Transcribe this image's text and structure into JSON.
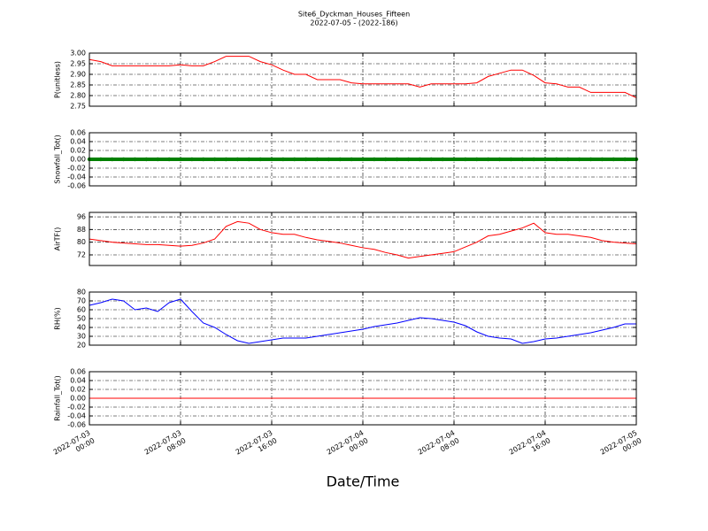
{
  "title": "Site6_Dyckman_Houses_Fifteen",
  "subtitle": "2022-07-05 - (2022-186)",
  "xlabel": "Date/Time",
  "chart_data": [
    {
      "type": "line",
      "ylabel": "P(unitless)",
      "color": "#ff0000",
      "grid": true,
      "x": [
        "2022-07-03 00:00",
        "2022-07-03 01:00",
        "2022-07-03 02:00",
        "2022-07-03 03:00",
        "2022-07-03 04:00",
        "2022-07-03 05:00",
        "2022-07-03 06:00",
        "2022-07-03 07:00",
        "2022-07-03 08:00",
        "2022-07-03 09:00",
        "2022-07-03 10:00",
        "2022-07-03 11:00",
        "2022-07-03 12:00",
        "2022-07-03 13:00",
        "2022-07-03 14:00",
        "2022-07-03 15:00",
        "2022-07-03 16:00",
        "2022-07-03 17:00",
        "2022-07-03 18:00",
        "2022-07-03 19:00",
        "2022-07-03 20:00",
        "2022-07-03 21:00",
        "2022-07-03 22:00",
        "2022-07-03 23:00",
        "2022-07-04 00:00",
        "2022-07-04 01:00",
        "2022-07-04 02:00",
        "2022-07-04 03:00",
        "2022-07-04 04:00",
        "2022-07-04 05:00",
        "2022-07-04 06:00",
        "2022-07-04 07:00",
        "2022-07-04 08:00",
        "2022-07-04 09:00",
        "2022-07-04 10:00",
        "2022-07-04 11:00",
        "2022-07-04 12:00",
        "2022-07-04 13:00",
        "2022-07-04 14:00",
        "2022-07-04 15:00",
        "2022-07-04 16:00",
        "2022-07-04 17:00",
        "2022-07-04 18:00",
        "2022-07-04 19:00",
        "2022-07-04 20:00",
        "2022-07-04 21:00",
        "2022-07-04 22:00",
        "2022-07-04 23:00",
        "2022-07-05 00:00"
      ],
      "values": [
        2.97,
        2.96,
        2.94,
        2.94,
        2.94,
        2.94,
        2.94,
        2.94,
        2.945,
        2.94,
        2.94,
        2.96,
        2.985,
        2.985,
        2.985,
        2.96,
        2.945,
        2.92,
        2.9,
        2.9,
        2.875,
        2.875,
        2.875,
        2.86,
        2.855,
        2.855,
        2.855,
        2.855,
        2.855,
        2.84,
        2.855,
        2.855,
        2.855,
        2.855,
        2.86,
        2.89,
        2.905,
        2.92,
        2.92,
        2.895,
        2.86,
        2.855,
        2.84,
        2.84,
        2.815,
        2.815,
        2.815,
        2.815,
        2.79
      ],
      "xlim": [
        "2022-07-03 00:00",
        "2022-07-05 00:00"
      ],
      "xticks": [
        "2022-07-03 00:00",
        "2022-07-03 08:00",
        "2022-07-03 16:00",
        "2022-07-04 00:00",
        "2022-07-04 08:00",
        "2022-07-04 16:00",
        "2022-07-05 00:00"
      ],
      "ylim": [
        2.75,
        3.0
      ],
      "yticks": [
        2.75,
        {
          "value": 2.8,
          "label": "2.80"
        },
        2.85,
        {
          "value": 2.9,
          "label": "2.90"
        },
        2.95,
        {
          "value": 3.0,
          "label": "3.00"
        }
      ]
    },
    {
      "type": "scatter",
      "ylabel": "Snowfall_Tot()",
      "color": "#008000",
      "grid": true,
      "x": [
        "2022-07-03 00:00",
        "2022-07-03 01:00",
        "2022-07-03 02:00",
        "2022-07-03 03:00",
        "2022-07-03 04:00",
        "2022-07-03 05:00",
        "2022-07-03 06:00",
        "2022-07-03 07:00",
        "2022-07-03 08:00",
        "2022-07-03 09:00",
        "2022-07-03 10:00",
        "2022-07-03 11:00",
        "2022-07-03 12:00",
        "2022-07-03 13:00",
        "2022-07-03 14:00",
        "2022-07-03 15:00",
        "2022-07-03 16:00",
        "2022-07-03 17:00",
        "2022-07-03 18:00",
        "2022-07-03 19:00",
        "2022-07-03 20:00",
        "2022-07-03 21:00",
        "2022-07-03 22:00",
        "2022-07-03 23:00",
        "2022-07-04 00:00",
        "2022-07-04 01:00",
        "2022-07-04 02:00",
        "2022-07-04 03:00",
        "2022-07-04 04:00",
        "2022-07-04 05:00",
        "2022-07-04 06:00",
        "2022-07-04 07:00",
        "2022-07-04 08:00",
        "2022-07-04 09:00",
        "2022-07-04 10:00",
        "2022-07-04 11:00",
        "2022-07-04 12:00",
        "2022-07-04 13:00",
        "2022-07-04 14:00",
        "2022-07-04 15:00",
        "2022-07-04 16:00",
        "2022-07-04 17:00",
        "2022-07-04 18:00",
        "2022-07-04 19:00",
        "2022-07-04 20:00",
        "2022-07-04 21:00",
        "2022-07-04 22:00",
        "2022-07-04 23:00",
        "2022-07-05 00:00"
      ],
      "values": [
        0,
        0,
        0,
        0,
        0,
        0,
        0,
        0,
        0,
        0,
        0,
        0,
        0,
        0,
        0,
        0,
        0,
        0,
        0,
        0,
        0,
        0,
        0,
        0,
        0,
        0,
        0,
        0,
        0,
        0,
        0,
        0,
        0,
        0,
        0,
        0,
        0,
        0,
        0,
        0,
        0,
        0,
        0,
        0,
        0,
        0,
        0,
        0,
        0
      ],
      "xlim": [
        "2022-07-03 00:00",
        "2022-07-05 00:00"
      ],
      "xticks": [
        "2022-07-03 00:00",
        "2022-07-03 08:00",
        "2022-07-03 16:00",
        "2022-07-04 00:00",
        "2022-07-04 08:00",
        "2022-07-04 16:00",
        "2022-07-05 00:00"
      ],
      "ylim": [
        -0.06,
        0.06
      ],
      "yticks": [
        -0.06,
        -0.04,
        -0.02,
        {
          "value": 0,
          "label": "0.00"
        },
        0.02,
        0.04,
        0.06
      ]
    },
    {
      "type": "line",
      "ylabel": "AirTF()",
      "color": "#ff0000",
      "grid": true,
      "x": [
        "2022-07-03 00:00",
        "2022-07-03 01:00",
        "2022-07-03 02:00",
        "2022-07-03 03:00",
        "2022-07-03 04:00",
        "2022-07-03 05:00",
        "2022-07-03 06:00",
        "2022-07-03 07:00",
        "2022-07-03 08:00",
        "2022-07-03 09:00",
        "2022-07-03 10:00",
        "2022-07-03 11:00",
        "2022-07-03 12:00",
        "2022-07-03 13:00",
        "2022-07-03 14:00",
        "2022-07-03 15:00",
        "2022-07-03 16:00",
        "2022-07-03 17:00",
        "2022-07-03 18:00",
        "2022-07-03 19:00",
        "2022-07-03 20:00",
        "2022-07-03 21:00",
        "2022-07-03 22:00",
        "2022-07-03 23:00",
        "2022-07-04 00:00",
        "2022-07-04 01:00",
        "2022-07-04 02:00",
        "2022-07-04 03:00",
        "2022-07-04 04:00",
        "2022-07-04 05:00",
        "2022-07-04 06:00",
        "2022-07-04 07:00",
        "2022-07-04 08:00",
        "2022-07-04 09:00",
        "2022-07-04 10:00",
        "2022-07-04 11:00",
        "2022-07-04 12:00",
        "2022-07-04 13:00",
        "2022-07-04 14:00",
        "2022-07-04 15:00",
        "2022-07-04 16:00",
        "2022-07-04 17:00",
        "2022-07-04 18:00",
        "2022-07-04 19:00",
        "2022-07-04 20:00",
        "2022-07-04 21:00",
        "2022-07-04 22:00",
        "2022-07-04 23:00",
        "2022-07-05 00:00"
      ],
      "values": [
        82,
        81,
        80,
        79.5,
        79,
        78.5,
        78.5,
        78,
        77.5,
        78,
        79.5,
        82,
        90,
        93,
        92,
        88,
        86,
        85,
        85,
        83,
        81.5,
        80.5,
        79.5,
        78,
        76.5,
        75.5,
        73.5,
        72,
        70,
        71,
        72,
        73,
        74,
        77,
        80,
        84,
        85,
        87,
        89,
        92,
        86,
        85,
        85,
        84,
        83,
        81,
        80,
        79.5,
        79
      ],
      "xlim": [
        "2022-07-03 00:00",
        "2022-07-05 00:00"
      ],
      "xticks": [
        "2022-07-03 00:00",
        "2022-07-03 08:00",
        "2022-07-03 16:00",
        "2022-07-04 00:00",
        "2022-07-04 08:00",
        "2022-07-04 16:00",
        "2022-07-05 00:00"
      ],
      "ylim": [
        65.3,
        98.8
      ],
      "yticks": [
        72,
        80,
        88,
        96
      ]
    },
    {
      "type": "line",
      "ylabel": "RH(%)",
      "color": "#0000ff",
      "grid": true,
      "x": [
        "2022-07-03 00:00",
        "2022-07-03 01:00",
        "2022-07-03 02:00",
        "2022-07-03 03:00",
        "2022-07-03 04:00",
        "2022-07-03 05:00",
        "2022-07-03 06:00",
        "2022-07-03 07:00",
        "2022-07-03 08:00",
        "2022-07-03 09:00",
        "2022-07-03 10:00",
        "2022-07-03 11:00",
        "2022-07-03 12:00",
        "2022-07-03 13:00",
        "2022-07-03 14:00",
        "2022-07-03 15:00",
        "2022-07-03 16:00",
        "2022-07-03 17:00",
        "2022-07-03 18:00",
        "2022-07-03 19:00",
        "2022-07-03 20:00",
        "2022-07-03 21:00",
        "2022-07-03 22:00",
        "2022-07-03 23:00",
        "2022-07-04 00:00",
        "2022-07-04 01:00",
        "2022-07-04 02:00",
        "2022-07-04 03:00",
        "2022-07-04 04:00",
        "2022-07-04 05:00",
        "2022-07-04 06:00",
        "2022-07-04 07:00",
        "2022-07-04 08:00",
        "2022-07-04 09:00",
        "2022-07-04 10:00",
        "2022-07-04 11:00",
        "2022-07-04 12:00",
        "2022-07-04 13:00",
        "2022-07-04 14:00",
        "2022-07-04 15:00",
        "2022-07-04 16:00",
        "2022-07-04 17:00",
        "2022-07-04 18:00",
        "2022-07-04 19:00",
        "2022-07-04 20:00",
        "2022-07-04 21:00",
        "2022-07-04 22:00",
        "2022-07-04 23:00",
        "2022-07-05 00:00"
      ],
      "values": [
        65,
        68,
        72,
        70,
        60,
        62,
        58,
        68,
        72,
        58,
        45,
        40,
        32,
        25,
        22,
        24,
        26,
        28,
        28,
        28,
        30,
        32,
        34,
        36,
        38,
        41,
        43,
        45,
        48,
        51,
        50,
        48,
        46,
        42,
        35,
        30,
        28,
        27,
        22,
        24,
        27,
        28,
        30,
        32,
        34,
        37,
        40,
        44,
        44
      ],
      "xlim": [
        "2022-07-03 00:00",
        "2022-07-05 00:00"
      ],
      "xticks": [
        "2022-07-03 00:00",
        "2022-07-03 08:00",
        "2022-07-03 16:00",
        "2022-07-04 00:00",
        "2022-07-04 08:00",
        "2022-07-04 16:00",
        "2022-07-05 00:00"
      ],
      "ylim": [
        20,
        80
      ],
      "yticks": [
        20,
        30,
        40,
        50,
        60,
        70,
        80
      ]
    },
    {
      "type": "line",
      "ylabel": "Rainfall_Tot()",
      "color": "#ff0000",
      "grid": true,
      "x": [
        "2022-07-03 00:00",
        "2022-07-03 01:00",
        "2022-07-03 02:00",
        "2022-07-03 03:00",
        "2022-07-03 04:00",
        "2022-07-03 05:00",
        "2022-07-03 06:00",
        "2022-07-03 07:00",
        "2022-07-03 08:00",
        "2022-07-03 09:00",
        "2022-07-03 10:00",
        "2022-07-03 11:00",
        "2022-07-03 12:00",
        "2022-07-03 13:00",
        "2022-07-03 14:00",
        "2022-07-03 15:00",
        "2022-07-03 16:00",
        "2022-07-03 17:00",
        "2022-07-03 18:00",
        "2022-07-03 19:00",
        "2022-07-03 20:00",
        "2022-07-03 21:00",
        "2022-07-03 22:00",
        "2022-07-03 23:00",
        "2022-07-04 00:00",
        "2022-07-04 01:00",
        "2022-07-04 02:00",
        "2022-07-04 03:00",
        "2022-07-04 04:00",
        "2022-07-04 05:00",
        "2022-07-04 06:00",
        "2022-07-04 07:00",
        "2022-07-04 08:00",
        "2022-07-04 09:00",
        "2022-07-04 10:00",
        "2022-07-04 11:00",
        "2022-07-04 12:00",
        "2022-07-04 13:00",
        "2022-07-04 14:00",
        "2022-07-04 15:00",
        "2022-07-04 16:00",
        "2022-07-04 17:00",
        "2022-07-04 18:00",
        "2022-07-04 19:00",
        "2022-07-04 20:00",
        "2022-07-04 21:00",
        "2022-07-04 22:00",
        "2022-07-04 23:00",
        "2022-07-05 00:00"
      ],
      "values": [
        0,
        0,
        0,
        0,
        0,
        0,
        0,
        0,
        0,
        0,
        0,
        0,
        0,
        0,
        0,
        0,
        0,
        0,
        0,
        0,
        0,
        0,
        0,
        0,
        0,
        0,
        0,
        0,
        0,
        0,
        0,
        0,
        0,
        0,
        0,
        0,
        0,
        0,
        0,
        0,
        0,
        0,
        0,
        0,
        0,
        0,
        0,
        0,
        0
      ],
      "xlim": [
        "2022-07-03 00:00",
        "2022-07-05 00:00"
      ],
      "xticks": [
        "2022-07-03 00:00",
        "2022-07-03 08:00",
        "2022-07-03 16:00",
        "2022-07-04 00:00",
        "2022-07-04 08:00",
        "2022-07-04 16:00",
        "2022-07-05 00:00"
      ],
      "ylim": [
        -0.06,
        0.06
      ],
      "yticks": [
        -0.06,
        -0.04,
        -0.02,
        {
          "value": 0,
          "label": "0.00"
        },
        0.02,
        0.04,
        0.06
      ]
    }
  ]
}
